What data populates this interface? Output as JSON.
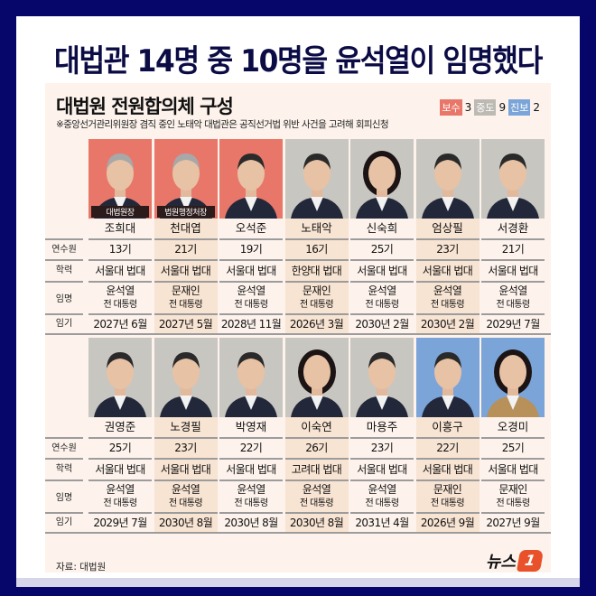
{
  "headline": "대법관 14명 중 10명을 윤석열이 임명했다",
  "card": {
    "title": "대법원 전원합의체 구성",
    "note": "※중앙선거관리위원장 겸직 중인 노태악 대법관은 공직선거법 위반 사건을 고려해 회피신청",
    "legend": [
      {
        "label": "보수",
        "count": "3",
        "color": "#e8776a"
      },
      {
        "label": "중도",
        "count": "9",
        "color": "#bdbab4"
      },
      {
        "label": "진보",
        "count": "2",
        "color": "#7ba4d8"
      }
    ],
    "row_labels": [
      "연수원",
      "학력",
      "임명",
      "임기"
    ],
    "colors": {
      "보수": "#e8776a",
      "중도": "#c8c6c0",
      "진보": "#7ba4d8"
    },
    "rows": [
      [
        {
          "name": "조희대",
          "badge": "대법원장",
          "group": "보수",
          "class": "13기",
          "school": "서울대 법대",
          "appointer": "윤석열",
          "appointer_title": "전 대통령",
          "term": "2027년 6월"
        },
        {
          "name": "천대엽",
          "badge": "법원행정처장",
          "group": "보수",
          "class": "21기",
          "school": "서울대 법대",
          "appointer": "문재인",
          "appointer_title": "전 대통령",
          "term": "2027년 5월"
        },
        {
          "name": "오석준",
          "group": "보수",
          "class": "19기",
          "school": "서울대 법대",
          "appointer": "윤석열",
          "appointer_title": "전 대통령",
          "term": "2028년 11월"
        },
        {
          "name": "노태악",
          "group": "중도",
          "class": "16기",
          "school": "한양대 법대",
          "appointer": "문재인",
          "appointer_title": "전 대통령",
          "term": "2026년 3월"
        },
        {
          "name": "신숙희",
          "group": "중도",
          "class": "25기",
          "school": "서울대 법대",
          "appointer": "윤석열",
          "appointer_title": "전 대통령",
          "term": "2030년 2월"
        },
        {
          "name": "엄상필",
          "group": "중도",
          "class": "23기",
          "school": "서울대 법대",
          "appointer": "윤석열",
          "appointer_title": "전 대통령",
          "term": "2030년 2월"
        },
        {
          "name": "서경환",
          "group": "중도",
          "class": "21기",
          "school": "서울대 법대",
          "appointer": "윤석열",
          "appointer_title": "전 대통령",
          "term": "2029년 7월"
        }
      ],
      [
        {
          "name": "권영준",
          "group": "중도",
          "class": "25기",
          "school": "서울대 법대",
          "appointer": "윤석열",
          "appointer_title": "전 대통령",
          "term": "2029년 7월"
        },
        {
          "name": "노경필",
          "group": "중도",
          "class": "23기",
          "school": "서울대 법대",
          "appointer": "윤석열",
          "appointer_title": "전 대통령",
          "term": "2030년 8월"
        },
        {
          "name": "박영재",
          "group": "중도",
          "class": "22기",
          "school": "서울대 법대",
          "appointer": "윤석열",
          "appointer_title": "전 대통령",
          "term": "2030년 8월"
        },
        {
          "name": "이숙연",
          "group": "중도",
          "class": "26기",
          "school": "고려대 법대",
          "appointer": "윤석열",
          "appointer_title": "전 대통령",
          "term": "2030년 8월"
        },
        {
          "name": "마용주",
          "group": "중도",
          "class": "23기",
          "school": "서울대 법대",
          "appointer": "윤석열",
          "appointer_title": "전 대통령",
          "term": "2031년 4월"
        },
        {
          "name": "이흥구",
          "group": "진보",
          "class": "22기",
          "school": "서울대 법대",
          "appointer": "문재인",
          "appointer_title": "전 대통령",
          "term": "2026년 9월"
        },
        {
          "name": "오경미",
          "group": "진보",
          "class": "25기",
          "school": "서울대 법대",
          "appointer": "문재인",
          "appointer_title": "전 대통령",
          "term": "2027년 9월"
        }
      ]
    ],
    "source": "자료: 대법원",
    "logo": {
      "text": "뉴스",
      "mark": "1"
    }
  }
}
